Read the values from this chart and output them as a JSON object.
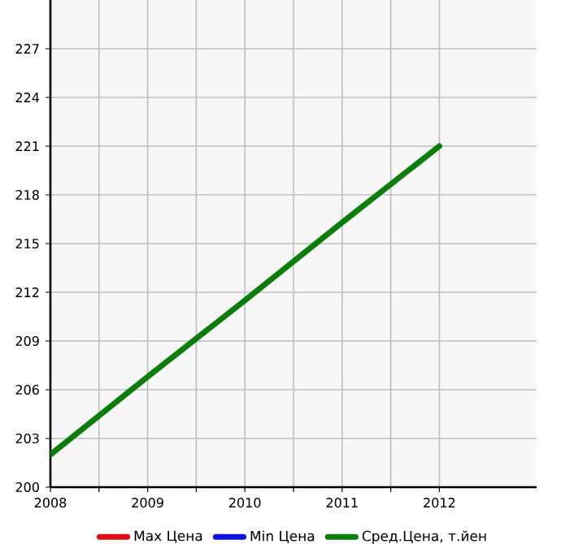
{
  "chart_data": {
    "type": "line",
    "x": [
      2008,
      2009,
      2010,
      2011,
      2012
    ],
    "series": [
      {
        "name": "Max Цена",
        "color": "#dd1111",
        "values": [
          null,
          null,
          null,
          null,
          null
        ]
      },
      {
        "name": "Min Цена",
        "color": "#1111dd",
        "values": [
          null,
          null,
          null,
          null,
          null
        ]
      },
      {
        "name": "Сред.Цена, т.йен",
        "color": "#0a7d0a",
        "values": [
          202,
          206.8,
          211.5,
          216.3,
          221
        ]
      }
    ],
    "xlim": [
      2008,
      2013
    ],
    "xticks": [
      2008,
      2009,
      2010,
      2011,
      2012
    ],
    "ylim": [
      200,
      230
    ],
    "yticks": [
      200,
      203,
      206,
      209,
      212,
      215,
      218,
      221,
      224,
      227
    ],
    "grid": true,
    "legend": "bottom",
    "marker": "none",
    "line_style": "solid"
  }
}
